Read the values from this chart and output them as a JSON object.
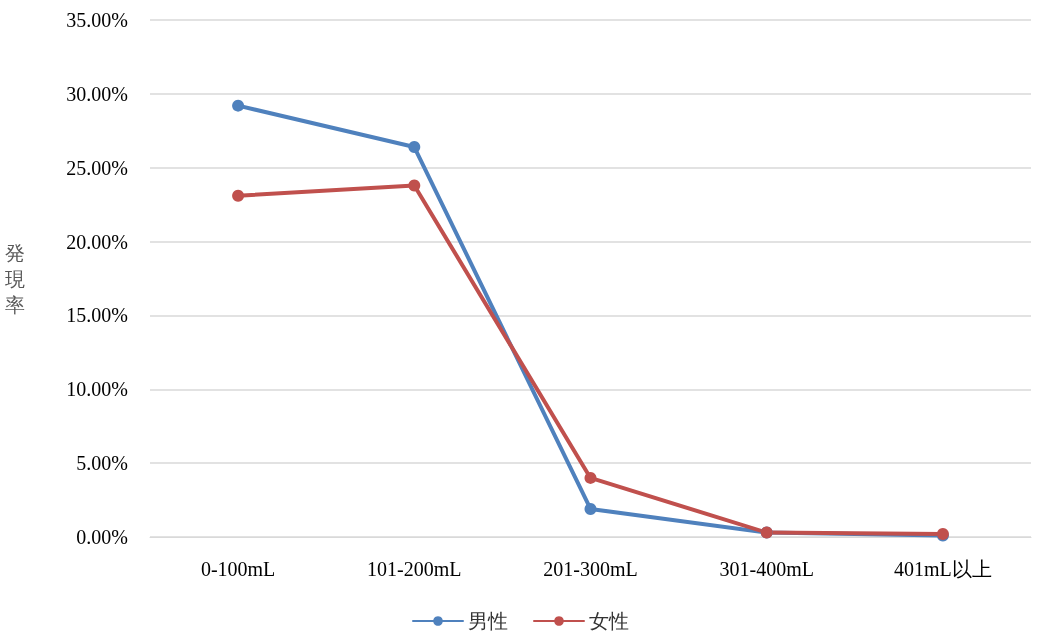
{
  "chart_data": {
    "type": "line",
    "ylabel": "発現率",
    "categories": [
      "0-100mL",
      "101-200mL",
      "201-300mL",
      "301-400mL",
      "401mL以上"
    ],
    "series": [
      {
        "name": "男性",
        "color": "#4f81bd",
        "values": [
          29.2,
          26.4,
          1.9,
          0.3,
          0.1
        ]
      },
      {
        "name": "女性",
        "color": "#c0504d",
        "values": [
          23.1,
          23.8,
          4.0,
          0.3,
          0.2
        ]
      }
    ],
    "ylim": [
      0,
      35
    ],
    "yticks": [
      {
        "value": 0,
        "label": "0.00%"
      },
      {
        "value": 5,
        "label": "5.00%"
      },
      {
        "value": 10,
        "label": "10.00%"
      },
      {
        "value": 15,
        "label": "15.00%"
      },
      {
        "value": 20,
        "label": "20.00%"
      },
      {
        "value": 25,
        "label": "25.00%"
      },
      {
        "value": 30,
        "label": "30.00%"
      },
      {
        "value": 35,
        "label": "35.00%"
      }
    ],
    "grid": "y",
    "legend": "bottom",
    "marker": "circle",
    "line_style": "solid"
  }
}
